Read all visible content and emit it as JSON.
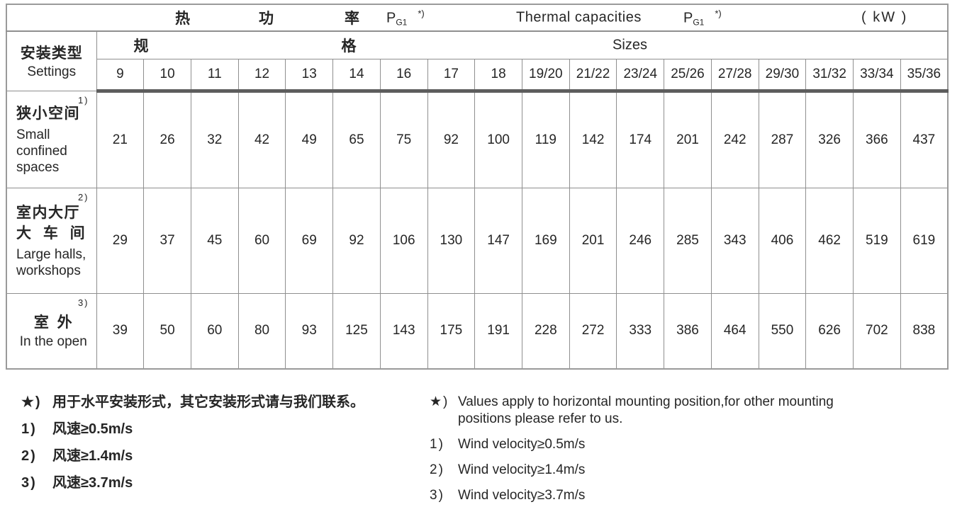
{
  "title_row": {
    "zh": [
      "热",
      "功",
      "率"
    ],
    "p": "P",
    "p_sub": "G1",
    "star": "*)",
    "en": "Thermal capacities",
    "unit": "( kW )"
  },
  "header": {
    "settings_zh": "安装类型",
    "settings_en": "Settings",
    "spec_char1": "规",
    "spec_char2": "格",
    "sizes_label": "Sizes",
    "sizes": [
      "9",
      "10",
      "11",
      "12",
      "13",
      "14",
      "16",
      "17",
      "18",
      "19/20",
      "21/22",
      "23/24",
      "25/26",
      "27/28",
      "29/30",
      "31/32",
      "33/34",
      "35/36"
    ]
  },
  "rows": [
    {
      "ref": "1)",
      "zh": "狭小空间",
      "en": "Small confined spaces",
      "values": [
        21,
        26,
        32,
        42,
        49,
        65,
        75,
        92,
        100,
        119,
        142,
        174,
        201,
        242,
        287,
        326,
        366,
        437
      ]
    },
    {
      "ref": "2)",
      "zh": "室内大厅",
      "zh2": "大 车 间",
      "en": "Large halls, workshops",
      "values": [
        29,
        37,
        45,
        60,
        69,
        92,
        106,
        130,
        147,
        169,
        201,
        246,
        285,
        343,
        406,
        462,
        519,
        619
      ]
    },
    {
      "ref": "3)",
      "zh": "室  外",
      "en": "In the open",
      "values": [
        39,
        50,
        60,
        80,
        93,
        125,
        143,
        175,
        191,
        228,
        272,
        333,
        386,
        464,
        550,
        626,
        702,
        838
      ]
    }
  ],
  "footnotes": {
    "zh": [
      {
        "mark": "★)",
        "text": "用于水平安装形式，其它安装形式请与我们联系。"
      },
      {
        "mark": "1)",
        "text": "风速≥0.5m/s"
      },
      {
        "mark": "2)",
        "text": "风速≥1.4m/s"
      },
      {
        "mark": "3)",
        "text": "风速≥3.7m/s"
      }
    ],
    "en": [
      {
        "mark": "★)",
        "text": "Values apply to horizontal mounting position,for other mounting positions please refer to us."
      },
      {
        "mark": "1)",
        "text": "Wind velocity≥0.5m/s"
      },
      {
        "mark": "2)",
        "text": "Wind velocity≥1.4m/s"
      },
      {
        "mark": "3)",
        "text": "Wind velocity≥3.7m/s"
      }
    ]
  }
}
